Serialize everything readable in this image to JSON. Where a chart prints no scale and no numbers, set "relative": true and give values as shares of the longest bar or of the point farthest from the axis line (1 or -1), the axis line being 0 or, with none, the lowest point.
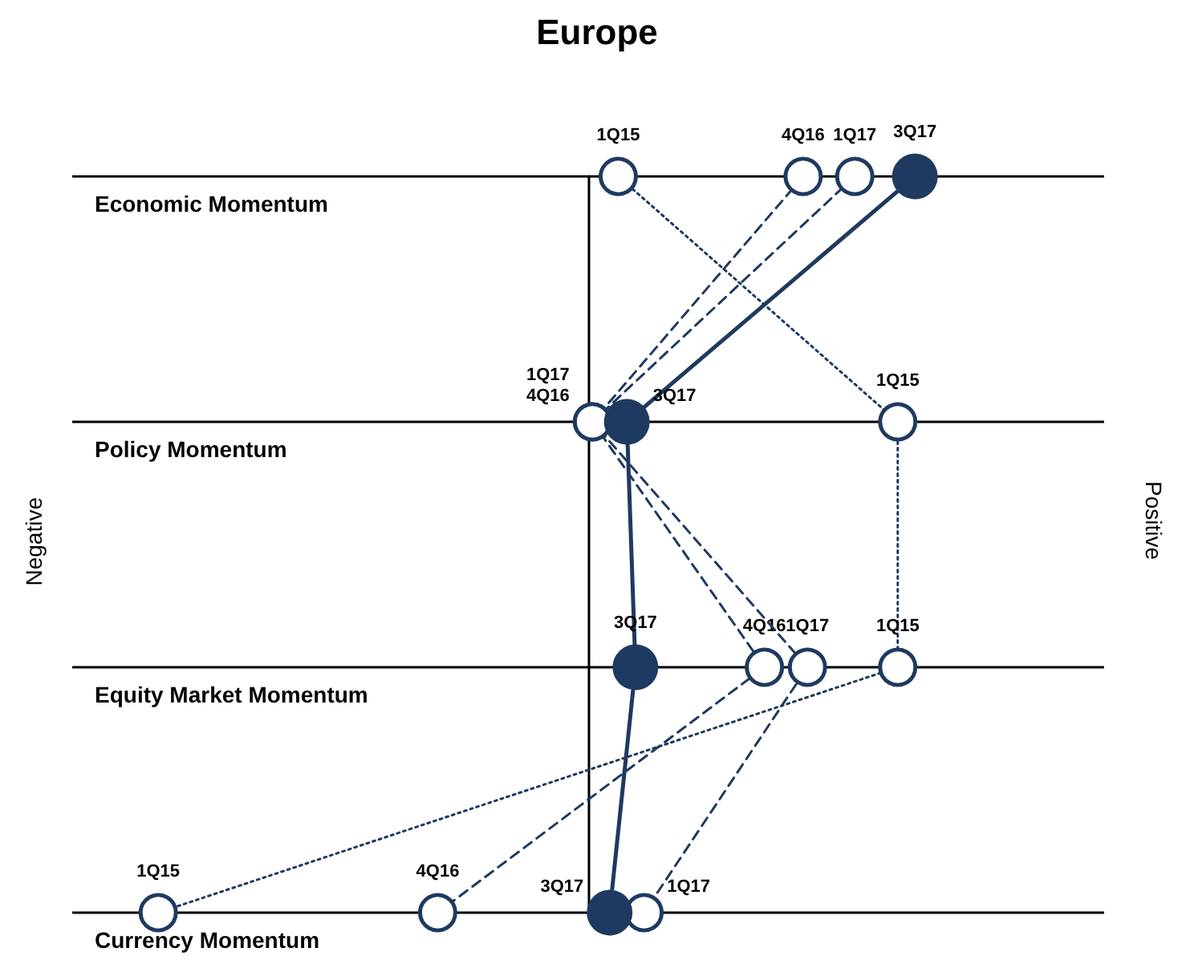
{
  "chart_data": {
    "type": "line",
    "title": "Europe",
    "orientation": "horizontal",
    "relative": true,
    "categories": [
      "Economic Momentum",
      "Policy Momentum",
      "Equity Market Momentum",
      "Currency Momentum"
    ],
    "series": [
      {
        "name": "1Q15",
        "color": "#1f3a60",
        "values": [
          0.07,
          0.72,
          0.72,
          -1
        ],
        "line_style": "dotted",
        "marker": "circle"
      },
      {
        "name": "4Q16",
        "color": "#1f3a60",
        "values": [
          0.5,
          0.01,
          0.41,
          -0.35
        ],
        "line_style": "dashed",
        "marker": "circle"
      },
      {
        "name": "1Q17",
        "color": "#1f3a60",
        "values": [
          0.62,
          0.01,
          0.51,
          0.13
        ],
        "line_style": "dashed",
        "marker": "circle"
      },
      {
        "name": "3Q17",
        "color": "#1f3a60",
        "values": [
          0.76,
          0.09,
          0.11,
          0.05
        ],
        "line_style": "solid",
        "marker": "circle"
      }
    ],
    "annotations": [
      "Negative",
      "Positive"
    ],
    "legend": false
  }
}
